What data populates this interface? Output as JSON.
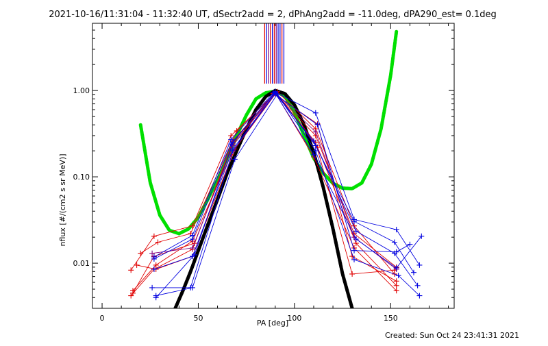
{
  "chart_data": {
    "type": "line",
    "title": "2021-10-16/11:31:04 - 11:32:40 UT, dSectr2add = 2, dPhAng2add = -11.0deg, dPA290_est=  0.1deg",
    "xlabel": "PA [deg]",
    "ylabel": "nflux [#/(cm2 s sr MeV)]",
    "footer": "Created: Sun Oct 24 23:41:31 2021",
    "xlim": [
      -5,
      183
    ],
    "ylim": [
      0.003,
      6
    ],
    "yscale": "log",
    "grid": false,
    "x_ticks": [
      0,
      50,
      100,
      150
    ],
    "x_tick_labels": [
      "0",
      "50",
      "100",
      "150"
    ],
    "y_ticks": [
      0.01,
      0.1,
      1.0
    ],
    "y_tick_labels": [
      "0.01",
      "0.10",
      "1.00"
    ],
    "colors": {
      "red": "#e00000",
      "blue": "#0000e0",
      "green": "#00e000",
      "black": "#000000",
      "purple": "#800080"
    },
    "fits": [
      {
        "color": "#00e000",
        "x": [
          20,
          25,
          30,
          35,
          40,
          45,
          50,
          55,
          60,
          65,
          70,
          75,
          80,
          85,
          90,
          95,
          100,
          105,
          110,
          115,
          120,
          125,
          130,
          135,
          140,
          145,
          150,
          153
        ],
        "y": [
          0.4,
          0.086,
          0.036,
          0.024,
          0.022,
          0.025,
          0.034,
          0.055,
          0.093,
          0.165,
          0.3,
          0.52,
          0.8,
          0.94,
          0.98,
          0.86,
          0.56,
          0.3,
          0.165,
          0.11,
          0.084,
          0.074,
          0.073,
          0.085,
          0.14,
          0.36,
          1.5,
          4.8
        ]
      },
      {
        "color": "#000000",
        "x": [
          38,
          42,
          46,
          50,
          55,
          60,
          65,
          70,
          75,
          80,
          85,
          90,
          95,
          100,
          105,
          110,
          115,
          120,
          125,
          130
        ],
        "y": [
          0.003,
          0.0048,
          0.008,
          0.014,
          0.028,
          0.055,
          0.11,
          0.2,
          0.36,
          0.6,
          0.85,
          1.0,
          0.92,
          0.68,
          0.4,
          0.19,
          0.075,
          0.025,
          0.0075,
          0.003
        ]
      }
    ],
    "series": [
      {
        "color": "#e00000",
        "x": [
          15,
          27,
          47,
          67,
          90,
          111,
          131,
          153
        ],
        "y": [
          0.0083,
          0.0205,
          0.027,
          0.3,
          0.93,
          0.3,
          0.022,
          0.009
        ]
      },
      {
        "color": "#e00000",
        "x": [
          16,
          27,
          48,
          68,
          90,
          112,
          132,
          153
        ],
        "y": [
          0.0045,
          0.012,
          0.017,
          0.24,
          0.95,
          0.22,
          0.017,
          0.0055
        ]
      },
      {
        "color": "#e00000",
        "x": [
          18,
          28,
          47,
          69,
          91,
          111,
          131,
          152
        ],
        "y": [
          0.0095,
          0.0085,
          0.012,
          0.21,
          0.97,
          0.36,
          0.027,
          0.0075
        ]
      },
      {
        "color": "#e00000",
        "x": [
          20,
          29,
          46,
          70,
          90,
          110,
          131,
          153
        ],
        "y": [
          0.013,
          0.0175,
          0.022,
          0.34,
          0.94,
          0.17,
          0.015,
          0.0048
        ]
      },
      {
        "color": "#e00000",
        "x": [
          16,
          28,
          47,
          67,
          89,
          112,
          130,
          153
        ],
        "y": [
          0.0048,
          0.0095,
          0.018,
          0.18,
          0.92,
          0.41,
          0.012,
          0.0062
        ]
      },
      {
        "color": "#e00000",
        "x": [
          15,
          27,
          47,
          68,
          90,
          111,
          130,
          152
        ],
        "y": [
          0.0042,
          0.0085,
          0.0145,
          0.26,
          0.96,
          0.25,
          0.0075,
          0.0083
        ]
      },
      {
        "color": "#800080",
        "x": [
          26,
          47,
          68,
          90,
          111,
          131,
          153
        ],
        "y": [
          0.013,
          0.015,
          0.23,
          0.95,
          0.33,
          0.02,
          0.0085
        ]
      },
      {
        "color": "#0000e0",
        "x": [
          27,
          47,
          67,
          90,
          111,
          131,
          153,
          165
        ],
        "y": [
          0.0112,
          0.019,
          0.24,
          0.96,
          0.55,
          0.032,
          0.0245,
          0.0095
        ]
      },
      {
        "color": "#0000e0",
        "x": [
          27,
          47,
          68,
          90,
          110,
          132,
          153,
          166
        ],
        "y": [
          0.0085,
          0.012,
          0.21,
          0.93,
          0.18,
          0.019,
          0.0088,
          0.0205
        ]
      },
      {
        "color": "#0000e0",
        "x": [
          28,
          47,
          69,
          91,
          111,
          131,
          154,
          165
        ],
        "y": [
          0.0042,
          0.0052,
          0.16,
          0.9,
          0.2,
          0.011,
          0.0072,
          0.0042
        ]
      },
      {
        "color": "#0000e0",
        "x": [
          27,
          47,
          67,
          89,
          112,
          131,
          153,
          160
        ],
        "y": [
          0.0118,
          0.021,
          0.27,
          0.94,
          0.4,
          0.014,
          0.0135,
          0.0165
        ]
      },
      {
        "color": "#0000e0",
        "x": [
          26,
          46,
          68,
          90,
          110,
          132,
          152,
          164
        ],
        "y": [
          0.0052,
          0.0052,
          0.2,
          0.92,
          0.26,
          0.0235,
          0.013,
          0.0055
        ]
      },
      {
        "color": "#0000e0",
        "x": [
          28,
          48,
          68,
          90,
          111,
          131,
          152,
          162
        ],
        "y": [
          0.004,
          0.0125,
          0.25,
          0.97,
          0.23,
          0.0305,
          0.0175,
          0.0078
        ]
      }
    ],
    "top_markers": {
      "x": [
        84.5,
        85.5,
        86.5,
        87.5,
        88.5,
        89.5,
        90.5,
        91.5,
        92.5,
        93.5,
        94.5
      ],
      "colors": [
        "#e00000",
        "#0000e0",
        "#800080",
        "#e00000",
        "#0000e0",
        "#e00000",
        "#800080",
        "#0000e0",
        "#0000e0",
        "#e00000",
        "#0000e0"
      ],
      "y_bottom": 1.2,
      "y_top": 6
    }
  }
}
